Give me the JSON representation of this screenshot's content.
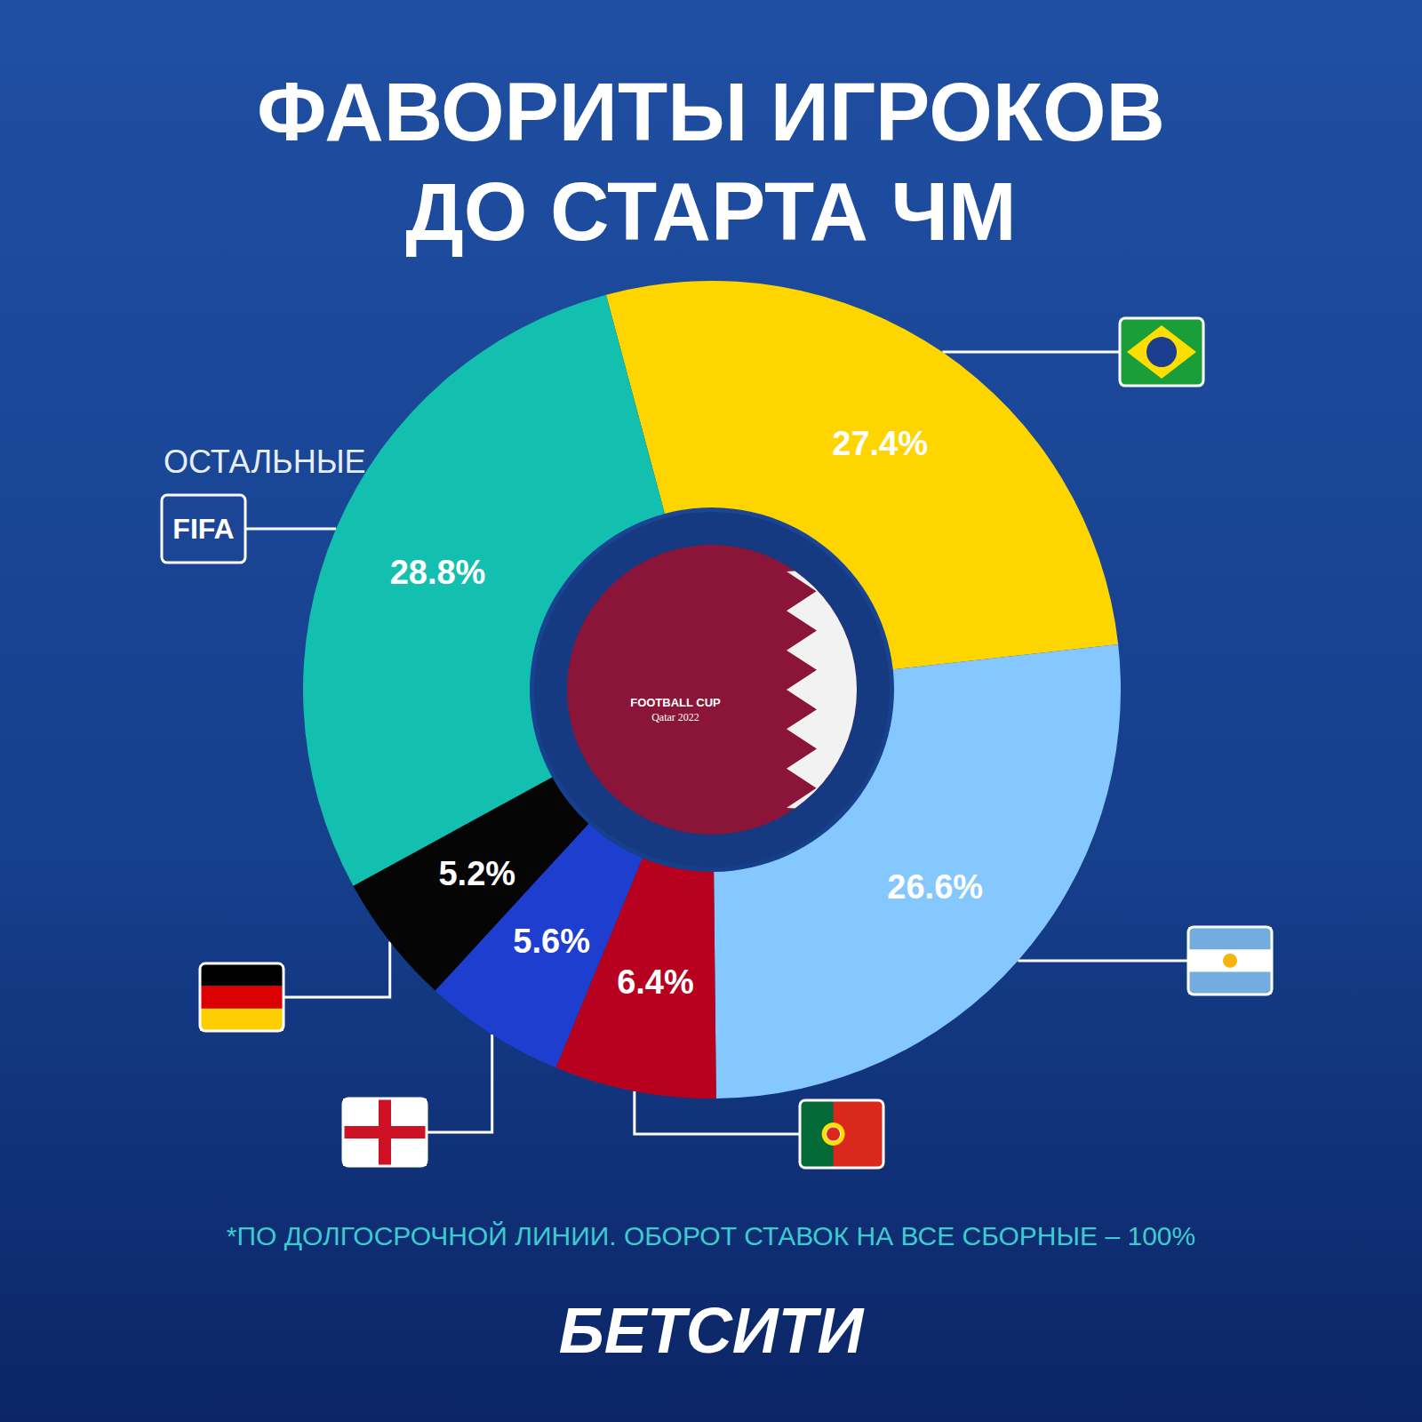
{
  "chart_data": {
    "type": "pie",
    "title": "ФАВОРИТЫ ИГРОКОВ ДО СТАРТА ЧМ",
    "categories": [
      null,
      null,
      null,
      null,
      null,
      "ОСТАЛЬНЫЕ"
    ],
    "values": [
      27.4,
      26.6,
      6.4,
      5.6,
      5.2,
      28.8
    ],
    "value_labels": [
      "27.4%",
      "26.6%",
      "6.4%",
      "5.6%",
      "5.2%",
      "28.8%"
    ],
    "colors": [
      "#ffd500",
      "#85c8ff",
      "#b8001f",
      "#1d3ecf",
      "#050505",
      "#13bfae"
    ],
    "data_labels": true,
    "annotations": [
      "FIFA",
      "FOOTBALL CUP",
      "Qatar 2022",
      "*ПО ДОЛГОСРОЧНОЙ ЛИНИИ. ОБОРОТ СТАВОК НА ВСЕ СБОРНЫЕ – 100%",
      "БЕТСИТИ"
    ]
  }
}
